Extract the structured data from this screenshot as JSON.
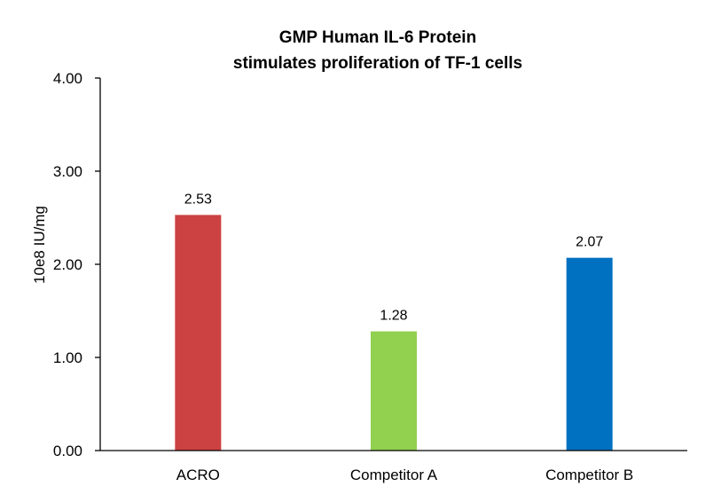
{
  "chart_data": {
    "type": "bar",
    "title": "GMP Human IL-6 Protein",
    "subtitle": "stimulates proliferation of TF-1 cells",
    "xlabel": "",
    "ylabel": "10e8 IU/mg",
    "categories": [
      "ACRO",
      "Competitor A",
      "Competitor B"
    ],
    "values": [
      2.53,
      1.28,
      2.07
    ],
    "data_labels": [
      "2.53",
      "1.28",
      "2.07"
    ],
    "colors": [
      "#cc4141",
      "#92d050",
      "#0070c0"
    ],
    "ylim": [
      0,
      4
    ],
    "yticks": [
      "0.00",
      "1.00",
      "2.00",
      "3.00",
      "4.00"
    ],
    "grid": false,
    "legend": "none"
  }
}
